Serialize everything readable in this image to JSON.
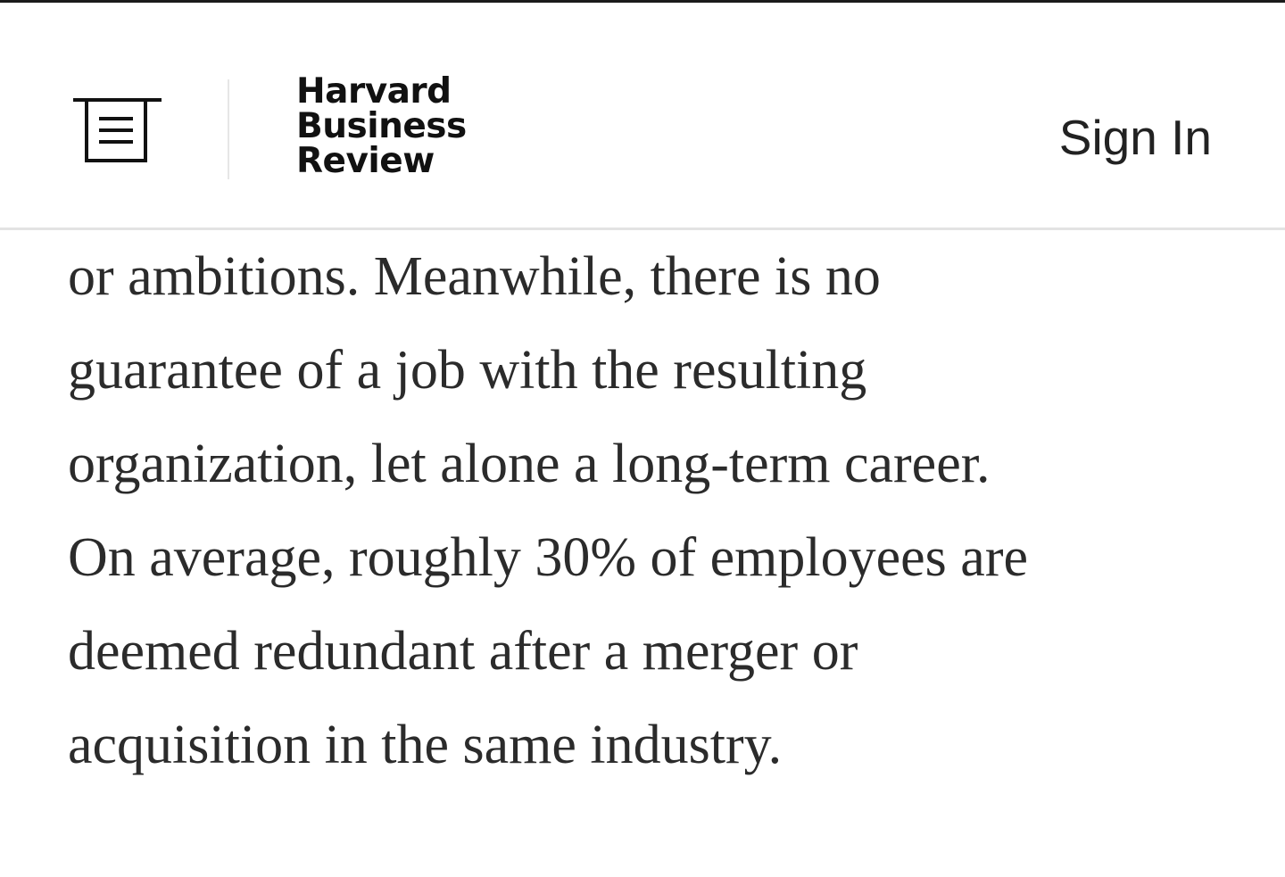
{
  "header": {
    "menu_icon": "menu-icon",
    "logo_lines": [
      "Harvard",
      "Business",
      "Review"
    ],
    "sign_in_label": "Sign In"
  },
  "article": {
    "lines": [
      "or ambitions. Meanwhile, there is no",
      "guarantee of a job with the resulting",
      "organization, let alone a long-term career.",
      "On average, roughly 30% of employees are",
      "deemed redundant after a merger or",
      "acquisition in the same industry."
    ]
  },
  "colors": {
    "background": "#ffffff",
    "text": "#2b2b2b",
    "logo": "#111111",
    "divider": "#e3e3e3"
  }
}
